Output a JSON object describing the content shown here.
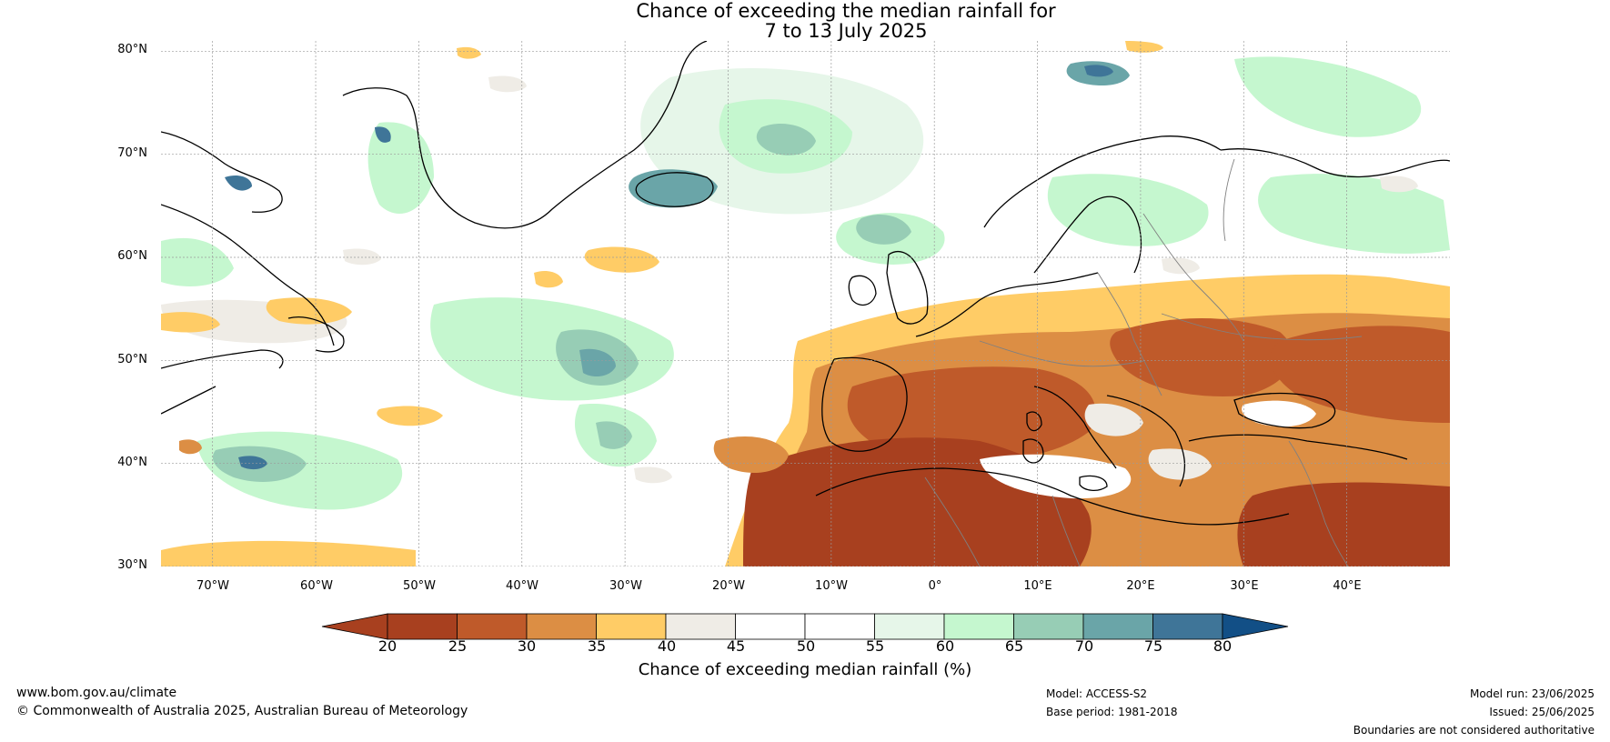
{
  "title": {
    "line1": "Chance of exceeding the median rainfall for",
    "line2": "7 to 13 July 2025"
  },
  "axes": {
    "lat_labels": [
      "80°N",
      "70°N",
      "60°N",
      "50°N",
      "40°N",
      "30°N"
    ],
    "lat_values": [
      80,
      70,
      60,
      50,
      40,
      30
    ],
    "lon_labels": [
      "70°W",
      "60°W",
      "50°W",
      "40°W",
      "30°W",
      "20°W",
      "10°W",
      "0°",
      "10°E",
      "20°E",
      "30°E",
      "40°E"
    ],
    "lon_values": [
      -70,
      -60,
      -50,
      -40,
      -30,
      -20,
      -10,
      0,
      10,
      20,
      30,
      40
    ],
    "lon_range": [
      -75,
      50
    ],
    "lat_range": [
      30,
      81
    ],
    "gridlines": true
  },
  "colorbar": {
    "title": "Chance of exceeding median rainfall (%)",
    "tick_labels": [
      "20",
      "25",
      "30",
      "35",
      "40",
      "45",
      "50",
      "55",
      "60",
      "65",
      "70",
      "75",
      "80"
    ],
    "colors": [
      "#a8401f",
      "#bf5a2a",
      "#dc8e44",
      "#ffcc66",
      "#efece6",
      "#ffffff",
      "#ffffff",
      "#e6f6e9",
      "#c5f7cf",
      "#97cdb5",
      "#6aa5a8",
      "#3f7598"
    ],
    "extend_low_color": "#a8401f",
    "extend_high_color": "#124f86"
  },
  "map_colors": {
    "ocean_base": "#ffffff",
    "coast": "#000000",
    "borders": "#808080",
    "grid": "#9a9a9a"
  },
  "footer": {
    "url": "www.bom.gov.au/climate",
    "copyright": "© Commonwealth of Australia 2025, Australian Bureau of Meteorology",
    "model": "Model: ACCESS-S2",
    "base_period": "Base period: 1981-2018",
    "model_run": "Model run: 23/06/2025",
    "issued": "Issued: 25/06/2025",
    "disclaimer": "Boundaries are not considered authoritative"
  }
}
